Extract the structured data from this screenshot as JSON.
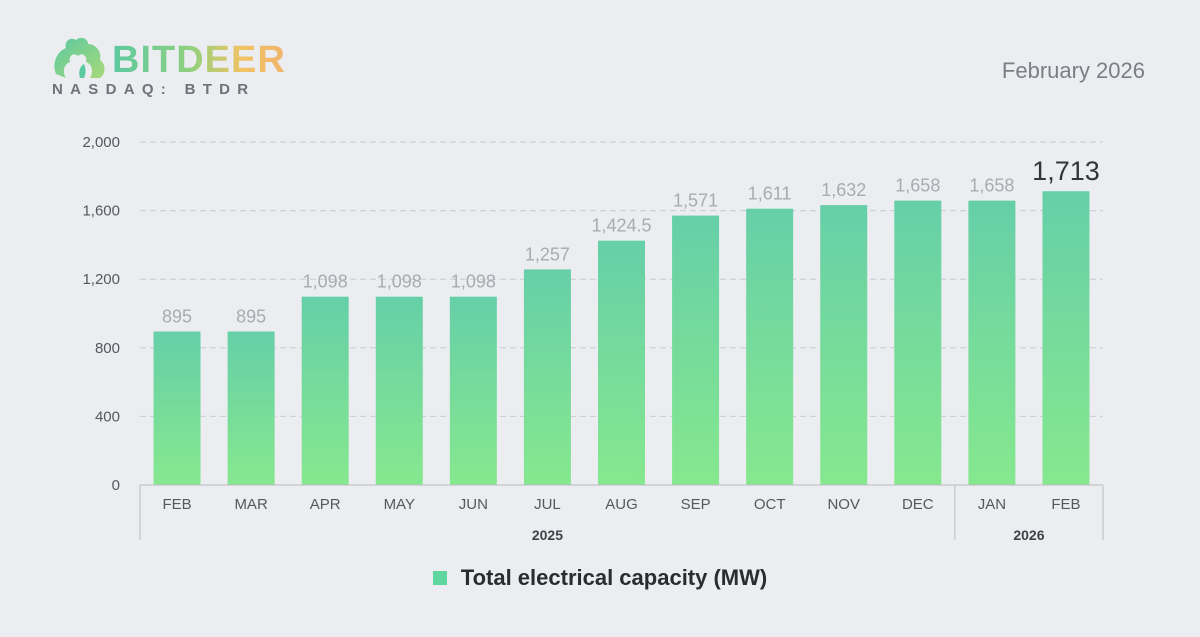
{
  "brand": {
    "name_part1": "BIT",
    "name_part2": "DEER",
    "ticker": "NASDAQ: BTDR"
  },
  "report_date": "February 2026",
  "colors": {
    "bar_top": "#66cfa8",
    "bar_bottom": "#86e88e",
    "value_label": "#a9abb0",
    "highlight_label": "#33353a",
    "axis_text": "#55585d",
    "grid": "#c9ccd1"
  },
  "chart_data": {
    "type": "bar",
    "title": "",
    "xlabel": "",
    "ylabel": "",
    "ylim": [
      0,
      2000
    ],
    "yticks": [
      0,
      400,
      800,
      1200,
      1600,
      2000
    ],
    "ytick_labels": [
      "0",
      "400",
      "800",
      "1,200",
      "1,600",
      "2,000"
    ],
    "grid": true,
    "categories": [
      "FEB",
      "MAR",
      "APR",
      "MAY",
      "JUN",
      "JUL",
      "AUG",
      "SEP",
      "OCT",
      "NOV",
      "DEC",
      "JAN",
      "FEB"
    ],
    "series": [
      {
        "name": "Total electrical capacity (MW)",
        "values": [
          895,
          895,
          1098,
          1098,
          1098,
          1257,
          1424.5,
          1571,
          1611,
          1632,
          1658,
          1658,
          1713
        ],
        "labels": [
          "895",
          "895",
          "1,098",
          "1,098",
          "1,098",
          "1,257",
          "1,424.5",
          "1,571",
          "1,611",
          "1,632",
          "1,658",
          "1,658",
          "1,713"
        ]
      }
    ],
    "groups": [
      {
        "label": "2025",
        "start": 0,
        "end": 10
      },
      {
        "label": "2026",
        "start": 11,
        "end": 12
      }
    ],
    "highlight_index": 12,
    "legend": {
      "position": "bottom-center",
      "label": "Total electrical capacity (MW)"
    }
  }
}
